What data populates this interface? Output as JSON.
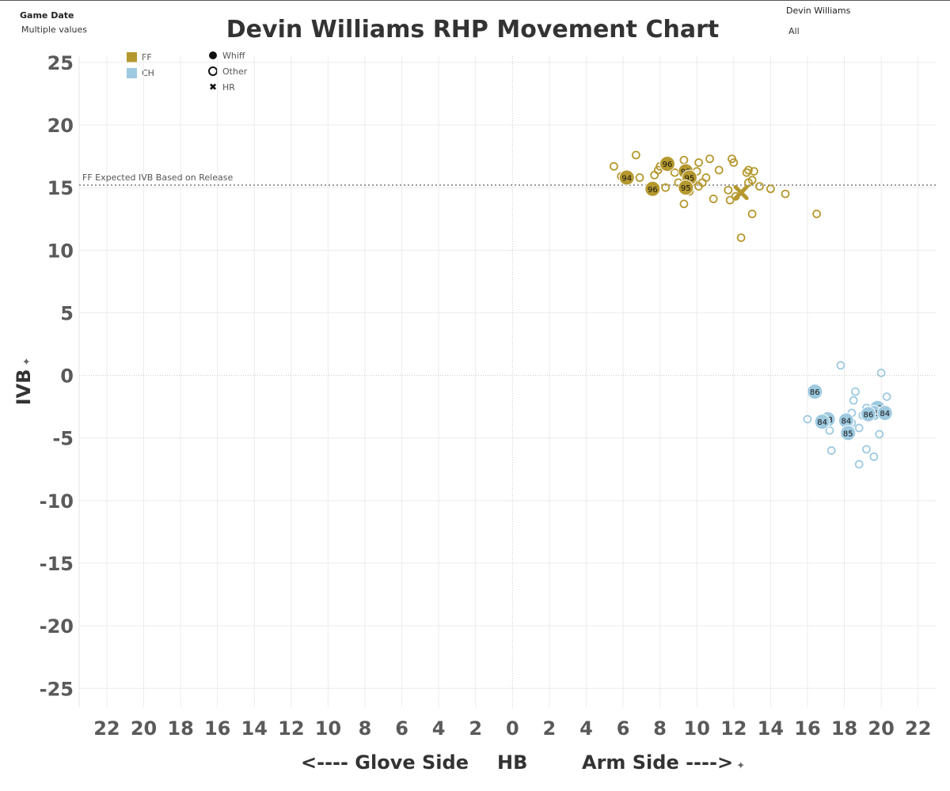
{
  "filters": {
    "game_date": {
      "label": "Game Date",
      "value": "Multiple values"
    },
    "pitcher": {
      "label": "Devin Williams",
      "value": "All"
    }
  },
  "legend": {
    "pitch_types": [
      {
        "label": "FF",
        "color": "#b5982e"
      },
      {
        "label": "CH",
        "color": "#9ecae1"
      }
    ],
    "outcomes": [
      {
        "label": "Whiff",
        "icon": "filled-circle-icon"
      },
      {
        "label": "Other",
        "icon": "hollow-circle-icon"
      },
      {
        "label": "HR",
        "icon": "x-mark-icon"
      }
    ]
  },
  "axis_footer": {
    "left": "<---- Glove Side",
    "center": "HB",
    "right": "Arm Side ---->",
    "pin_icon": "pin-icon"
  },
  "chart_data": {
    "type": "scatter",
    "title": "Devin Williams RHP Movement Chart",
    "xlabel": "HB",
    "ylabel": "IVB",
    "xlim": [
      -23.5,
      23
    ],
    "ylim": [
      -26.5,
      25.5
    ],
    "x_ticks": [
      -22,
      -20,
      -18,
      -16,
      -14,
      -12,
      -10,
      -8,
      -6,
      -4,
      -2,
      0,
      2,
      4,
      6,
      8,
      10,
      12,
      14,
      16,
      18,
      20,
      22
    ],
    "x_tick_labels": [
      "22",
      "20",
      "18",
      "16",
      "14",
      "12",
      "10",
      "8",
      "6",
      "4",
      "2",
      "0",
      "2",
      "4",
      "6",
      "8",
      "10",
      "12",
      "14",
      "16",
      "18",
      "20",
      "22"
    ],
    "y_ticks": [
      25,
      20,
      15,
      10,
      5,
      0,
      -5,
      -10,
      -15,
      -20,
      -25
    ],
    "y_tick_labels": [
      "25",
      "20",
      "15",
      "10",
      "5",
      "0",
      "-5",
      "-10",
      "-15",
      "-20",
      "-25"
    ],
    "grid": true,
    "reference_line": {
      "label": "FF Expected IVB Based on Release",
      "y": 15.2
    },
    "series": [
      {
        "name": "FF",
        "color": "#b5982e",
        "points": [
          {
            "x": 5.5,
            "y": 16.7
          },
          {
            "x": 5.9,
            "y": 15.9
          },
          {
            "x": 6.7,
            "y": 17.6
          },
          {
            "x": 6.9,
            "y": 15.8
          },
          {
            "x": 7.7,
            "y": 16.0
          },
          {
            "x": 7.9,
            "y": 16.4
          },
          {
            "x": 8.0,
            "y": 16.7
          },
          {
            "x": 8.3,
            "y": 15.0
          },
          {
            "x": 8.5,
            "y": 16.9
          },
          {
            "x": 8.8,
            "y": 16.2
          },
          {
            "x": 9.0,
            "y": 15.4
          },
          {
            "x": 9.3,
            "y": 17.2
          },
          {
            "x": 9.3,
            "y": 13.7
          },
          {
            "x": 9.6,
            "y": 14.7
          },
          {
            "x": 9.8,
            "y": 15.5
          },
          {
            "x": 10.0,
            "y": 16.3
          },
          {
            "x": 10.1,
            "y": 15.1
          },
          {
            "x": 10.1,
            "y": 17.0
          },
          {
            "x": 10.3,
            "y": 15.4
          },
          {
            "x": 10.5,
            "y": 15.8
          },
          {
            "x": 10.7,
            "y": 17.3
          },
          {
            "x": 10.9,
            "y": 14.1
          },
          {
            "x": 11.2,
            "y": 16.4
          },
          {
            "x": 11.7,
            "y": 14.8
          },
          {
            "x": 11.8,
            "y": 14.0
          },
          {
            "x": 11.9,
            "y": 17.3
          },
          {
            "x": 12.0,
            "y": 17.0
          },
          {
            "x": 12.1,
            "y": 14.3
          },
          {
            "x": 12.4,
            "y": 11.0
          },
          {
            "x": 12.7,
            "y": 16.2
          },
          {
            "x": 12.8,
            "y": 16.4
          },
          {
            "x": 12.8,
            "y": 15.4
          },
          {
            "x": 13.0,
            "y": 12.9
          },
          {
            "x": 13.0,
            "y": 15.6
          },
          {
            "x": 13.1,
            "y": 16.3
          },
          {
            "x": 13.4,
            "y": 15.1
          },
          {
            "x": 14.0,
            "y": 14.9
          },
          {
            "x": 14.8,
            "y": 14.5
          },
          {
            "x": 16.5,
            "y": 12.9
          },
          {
            "x": 6.2,
            "y": 15.8,
            "outcome": "Whiff",
            "label": "94"
          },
          {
            "x": 7.6,
            "y": 14.9,
            "outcome": "Whiff",
            "label": "96"
          },
          {
            "x": 8.4,
            "y": 16.9,
            "outcome": "Whiff",
            "label": "96"
          },
          {
            "x": 9.4,
            "y": 16.3,
            "outcome": "Whiff",
            "label": "95"
          },
          {
            "x": 9.6,
            "y": 15.8,
            "outcome": "Whiff",
            "label": "95"
          },
          {
            "x": 9.4,
            "y": 15.0,
            "outcome": "Whiff",
            "label": "95"
          },
          {
            "x": 12.4,
            "y": 14.6,
            "outcome": "HR"
          }
        ]
      },
      {
        "name": "CH",
        "color": "#9ecae1",
        "points": [
          {
            "x": 17.8,
            "y": 0.8
          },
          {
            "x": 20.0,
            "y": 0.2
          },
          {
            "x": 18.6,
            "y": -1.3
          },
          {
            "x": 20.3,
            "y": -1.7
          },
          {
            "x": 18.5,
            "y": -2.0
          },
          {
            "x": 19.2,
            "y": -2.6
          },
          {
            "x": 18.4,
            "y": -3.0
          },
          {
            "x": 19.0,
            "y": -3.2
          },
          {
            "x": 19.3,
            "y": -3.4
          },
          {
            "x": 16.0,
            "y": -3.5
          },
          {
            "x": 18.4,
            "y": -3.8
          },
          {
            "x": 17.2,
            "y": -4.4
          },
          {
            "x": 18.8,
            "y": -4.2
          },
          {
            "x": 19.9,
            "y": -4.7
          },
          {
            "x": 17.3,
            "y": -6.0
          },
          {
            "x": 19.2,
            "y": -5.9
          },
          {
            "x": 19.6,
            "y": -6.5
          },
          {
            "x": 18.8,
            "y": -7.1
          },
          {
            "x": 16.4,
            "y": -1.3,
            "outcome": "Whiff",
            "label": "86"
          },
          {
            "x": 17.1,
            "y": -3.5,
            "outcome": "Whiff",
            "label": "83"
          },
          {
            "x": 16.8,
            "y": -3.7,
            "outcome": "Whiff",
            "label": "84"
          },
          {
            "x": 18.1,
            "y": -3.6,
            "outcome": "Whiff",
            "label": "84"
          },
          {
            "x": 18.2,
            "y": -4.6,
            "outcome": "Whiff",
            "label": "85"
          },
          {
            "x": 19.8,
            "y": -2.6,
            "outcome": "Whiff",
            "label": "83"
          },
          {
            "x": 19.6,
            "y": -3.0,
            "outcome": "Whiff",
            "label": "85"
          },
          {
            "x": 19.3,
            "y": -3.1,
            "outcome": "Whiff",
            "label": "86"
          },
          {
            "x": 20.2,
            "y": -3.0,
            "outcome": "Whiff",
            "label": "84"
          }
        ]
      }
    ]
  }
}
